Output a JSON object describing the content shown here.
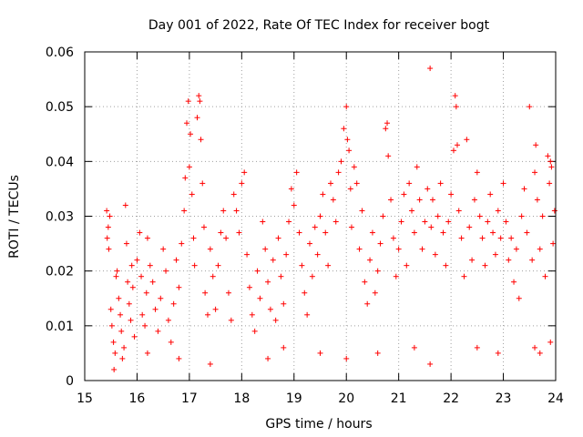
{
  "chart_data": {
    "type": "scatter",
    "title": "Day 001 of 2022, Rate Of TEC Index for receiver bogt",
    "xlabel": "GPS time / hours",
    "ylabel": "ROTI / TECUs",
    "xlim": [
      15,
      24
    ],
    "ylim": [
      0,
      0.06
    ],
    "grid": true,
    "marker": "+",
    "marker_color": "#ff0000",
    "x_ticks": [
      15,
      16,
      17,
      18,
      19,
      20,
      21,
      22,
      23,
      24
    ],
    "x_tick_labels": [
      "15",
      "16",
      "17",
      "18",
      "19",
      "20",
      "21",
      "22",
      "23",
      "24"
    ],
    "y_ticks": [
      0,
      0.01,
      0.02,
      0.03,
      0.04,
      0.05,
      0.06
    ],
    "y_tick_labels": [
      "0",
      "0.01",
      "0.02",
      "0.03",
      "0.04",
      "0.05",
      "0.06"
    ],
    "series": [
      {
        "points": [
          [
            15.42,
            0.031
          ],
          [
            15.45,
            0.028
          ],
          [
            15.48,
            0.03
          ],
          [
            15.43,
            0.026
          ],
          [
            15.46,
            0.024
          ],
          [
            15.5,
            0.013
          ],
          [
            15.52,
            0.01
          ],
          [
            15.55,
            0.007
          ],
          [
            15.58,
            0.005
          ],
          [
            15.6,
            0.019
          ],
          [
            15.62,
            0.02
          ],
          [
            15.65,
            0.015
          ],
          [
            15.68,
            0.012
          ],
          [
            15.7,
            0.009
          ],
          [
            15.72,
            0.004
          ],
          [
            15.75,
            0.006
          ],
          [
            15.78,
            0.032
          ],
          [
            15.8,
            0.025
          ],
          [
            15.82,
            0.018
          ],
          [
            15.85,
            0.014
          ],
          [
            15.88,
            0.011
          ],
          [
            15.9,
            0.021
          ],
          [
            15.92,
            0.017
          ],
          [
            15.95,
            0.008
          ],
          [
            16.0,
            0.022
          ],
          [
            16.05,
            0.027
          ],
          [
            16.08,
            0.019
          ],
          [
            16.1,
            0.012
          ],
          [
            16.15,
            0.01
          ],
          [
            16.18,
            0.016
          ],
          [
            16.2,
            0.026
          ],
          [
            16.25,
            0.021
          ],
          [
            16.3,
            0.018
          ],
          [
            16.35,
            0.013
          ],
          [
            16.4,
            0.009
          ],
          [
            16.45,
            0.015
          ],
          [
            16.5,
            0.024
          ],
          [
            16.55,
            0.02
          ],
          [
            16.6,
            0.011
          ],
          [
            16.65,
            0.007
          ],
          [
            16.7,
            0.014
          ],
          [
            16.75,
            0.022
          ],
          [
            16.8,
            0.017
          ],
          [
            16.85,
            0.025
          ],
          [
            16.9,
            0.031
          ],
          [
            16.92,
            0.037
          ],
          [
            16.95,
            0.047
          ],
          [
            16.98,
            0.051
          ],
          [
            17.0,
            0.039
          ],
          [
            17.02,
            0.045
          ],
          [
            17.05,
            0.034
          ],
          [
            17.08,
            0.026
          ],
          [
            17.1,
            0.021
          ],
          [
            17.15,
            0.048
          ],
          [
            17.18,
            0.052
          ],
          [
            17.2,
            0.051
          ],
          [
            17.22,
            0.044
          ],
          [
            17.25,
            0.036
          ],
          [
            17.28,
            0.028
          ],
          [
            17.3,
            0.016
          ],
          [
            17.35,
            0.012
          ],
          [
            17.4,
            0.024
          ],
          [
            17.45,
            0.019
          ],
          [
            17.5,
            0.013
          ],
          [
            17.55,
            0.021
          ],
          [
            17.6,
            0.027
          ],
          [
            17.65,
            0.031
          ],
          [
            17.7,
            0.026
          ],
          [
            17.75,
            0.016
          ],
          [
            17.8,
            0.011
          ],
          [
            17.85,
            0.034
          ],
          [
            17.9,
            0.031
          ],
          [
            17.95,
            0.027
          ],
          [
            18.0,
            0.036
          ],
          [
            18.05,
            0.038
          ],
          [
            18.1,
            0.023
          ],
          [
            18.15,
            0.017
          ],
          [
            18.2,
            0.012
          ],
          [
            18.25,
            0.009
          ],
          [
            18.3,
            0.02
          ],
          [
            18.35,
            0.015
          ],
          [
            18.4,
            0.029
          ],
          [
            18.45,
            0.024
          ],
          [
            18.5,
            0.018
          ],
          [
            18.55,
            0.013
          ],
          [
            18.6,
            0.022
          ],
          [
            18.65,
            0.011
          ],
          [
            18.7,
            0.026
          ],
          [
            18.75,
            0.019
          ],
          [
            18.8,
            0.014
          ],
          [
            18.85,
            0.023
          ],
          [
            18.9,
            0.029
          ],
          [
            18.95,
            0.035
          ],
          [
            19.0,
            0.032
          ],
          [
            19.05,
            0.038
          ],
          [
            19.1,
            0.027
          ],
          [
            19.15,
            0.021
          ],
          [
            19.2,
            0.016
          ],
          [
            19.25,
            0.012
          ],
          [
            19.3,
            0.025
          ],
          [
            19.35,
            0.019
          ],
          [
            19.4,
            0.028
          ],
          [
            19.45,
            0.023
          ],
          [
            19.5,
            0.03
          ],
          [
            19.55,
            0.034
          ],
          [
            19.6,
            0.027
          ],
          [
            19.65,
            0.021
          ],
          [
            19.7,
            0.036
          ],
          [
            19.75,
            0.033
          ],
          [
            19.8,
            0.029
          ],
          [
            19.85,
            0.038
          ],
          [
            19.9,
            0.04
          ],
          [
            19.95,
            0.046
          ],
          [
            20.0,
            0.05
          ],
          [
            20.02,
            0.044
          ],
          [
            20.05,
            0.042
          ],
          [
            20.08,
            0.035
          ],
          [
            20.1,
            0.028
          ],
          [
            20.15,
            0.039
          ],
          [
            20.2,
            0.036
          ],
          [
            20.25,
            0.024
          ],
          [
            20.3,
            0.031
          ],
          [
            20.35,
            0.018
          ],
          [
            20.4,
            0.014
          ],
          [
            20.45,
            0.022
          ],
          [
            20.5,
            0.027
          ],
          [
            20.55,
            0.016
          ],
          [
            20.6,
            0.02
          ],
          [
            20.65,
            0.025
          ],
          [
            20.7,
            0.03
          ],
          [
            20.75,
            0.046
          ],
          [
            20.78,
            0.047
          ],
          [
            20.8,
            0.041
          ],
          [
            20.85,
            0.033
          ],
          [
            20.9,
            0.026
          ],
          [
            20.95,
            0.019
          ],
          [
            21.0,
            0.024
          ],
          [
            21.05,
            0.029
          ],
          [
            21.1,
            0.034
          ],
          [
            21.15,
            0.021
          ],
          [
            21.2,
            0.036
          ],
          [
            21.25,
            0.031
          ],
          [
            21.3,
            0.027
          ],
          [
            21.35,
            0.039
          ],
          [
            21.4,
            0.033
          ],
          [
            21.45,
            0.024
          ],
          [
            21.5,
            0.029
          ],
          [
            21.55,
            0.035
          ],
          [
            21.6,
            0.057
          ],
          [
            21.62,
            0.028
          ],
          [
            21.65,
            0.033
          ],
          [
            21.7,
            0.023
          ],
          [
            21.75,
            0.03
          ],
          [
            21.8,
            0.036
          ],
          [
            21.85,
            0.027
          ],
          [
            21.9,
            0.021
          ],
          [
            21.95,
            0.029
          ],
          [
            22.0,
            0.034
          ],
          [
            22.05,
            0.042
          ],
          [
            22.08,
            0.052
          ],
          [
            22.1,
            0.05
          ],
          [
            22.12,
            0.043
          ],
          [
            22.15,
            0.031
          ],
          [
            22.2,
            0.026
          ],
          [
            22.25,
            0.019
          ],
          [
            22.3,
            0.044
          ],
          [
            22.35,
            0.028
          ],
          [
            22.4,
            0.022
          ],
          [
            22.45,
            0.033
          ],
          [
            22.5,
            0.038
          ],
          [
            22.55,
            0.03
          ],
          [
            22.6,
            0.026
          ],
          [
            22.65,
            0.021
          ],
          [
            22.7,
            0.029
          ],
          [
            22.75,
            0.034
          ],
          [
            22.8,
            0.027
          ],
          [
            22.85,
            0.023
          ],
          [
            22.9,
            0.031
          ],
          [
            22.95,
            0.026
          ],
          [
            23.0,
            0.036
          ],
          [
            23.05,
            0.029
          ],
          [
            23.1,
            0.022
          ],
          [
            23.15,
            0.026
          ],
          [
            23.2,
            0.018
          ],
          [
            23.25,
            0.024
          ],
          [
            23.3,
            0.015
          ],
          [
            23.35,
            0.03
          ],
          [
            23.4,
            0.035
          ],
          [
            23.45,
            0.027
          ],
          [
            23.5,
            0.05
          ],
          [
            23.55,
            0.022
          ],
          [
            23.6,
            0.038
          ],
          [
            23.62,
            0.043
          ],
          [
            23.65,
            0.033
          ],
          [
            23.7,
            0.024
          ],
          [
            23.75,
            0.03
          ],
          [
            23.8,
            0.019
          ],
          [
            23.85,
            0.041
          ],
          [
            23.88,
            0.036
          ],
          [
            23.9,
            0.04
          ],
          [
            23.92,
            0.039
          ],
          [
            23.95,
            0.025
          ],
          [
            23.98,
            0.031
          ],
          [
            23.6,
            0.006
          ],
          [
            23.7,
            0.005
          ],
          [
            23.9,
            0.007
          ],
          [
            22.5,
            0.006
          ],
          [
            21.6,
            0.003
          ],
          [
            20.0,
            0.004
          ],
          [
            19.5,
            0.005
          ],
          [
            18.5,
            0.004
          ],
          [
            17.4,
            0.003
          ],
          [
            16.2,
            0.005
          ],
          [
            15.56,
            0.002
          ],
          [
            16.8,
            0.004
          ],
          [
            18.8,
            0.006
          ],
          [
            20.6,
            0.005
          ],
          [
            21.3,
            0.006
          ],
          [
            22.9,
            0.005
          ]
        ]
      }
    ]
  }
}
